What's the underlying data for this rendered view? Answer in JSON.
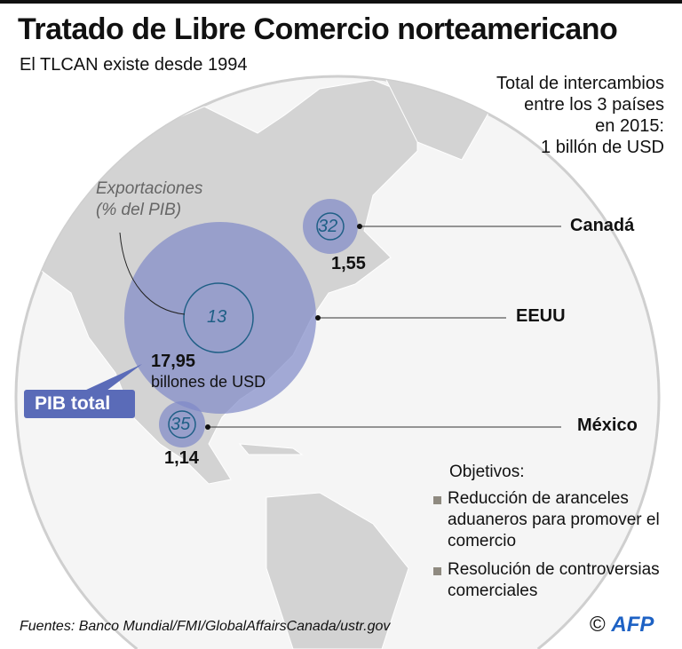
{
  "header": {
    "title": "Tratado de Libre Comercio norteamericano",
    "subtitle": "El TLCAN existe desde 1994"
  },
  "total": {
    "line1": "Total de intercambios",
    "line2": "entre los 3 países",
    "line3": "en 2015:",
    "line4": "1 billón de USD"
  },
  "legend_note": {
    "line1": "Exportaciones",
    "line2": "(% del PIB)"
  },
  "pib_label": "PIB total",
  "countries": [
    {
      "name": "Canadá",
      "gdp": "1,55",
      "exports_pct": "32"
    },
    {
      "name": "EEUU",
      "gdp": "17,95",
      "gdp_unit": "billones de USD",
      "exports_pct": "13"
    },
    {
      "name": "México",
      "gdp": "1,14",
      "exports_pct": "35"
    }
  ],
  "objectives": {
    "title": "Objetivos:",
    "items": [
      "Reducción de aranceles aduaneros para promover el comercio",
      "Resolución de controversias comerciales"
    ]
  },
  "source": "Fuentes: Banco Mundial/FMI/GlobalAffairsCanada/ustr.gov",
  "credit": {
    "symbol": "©",
    "logo": "AFP"
  },
  "colors": {
    "bubble": "#7f89c8",
    "pib_box": "#5a6bb8",
    "pct_text": "#1f5f86",
    "land": "#d3d3d3"
  }
}
